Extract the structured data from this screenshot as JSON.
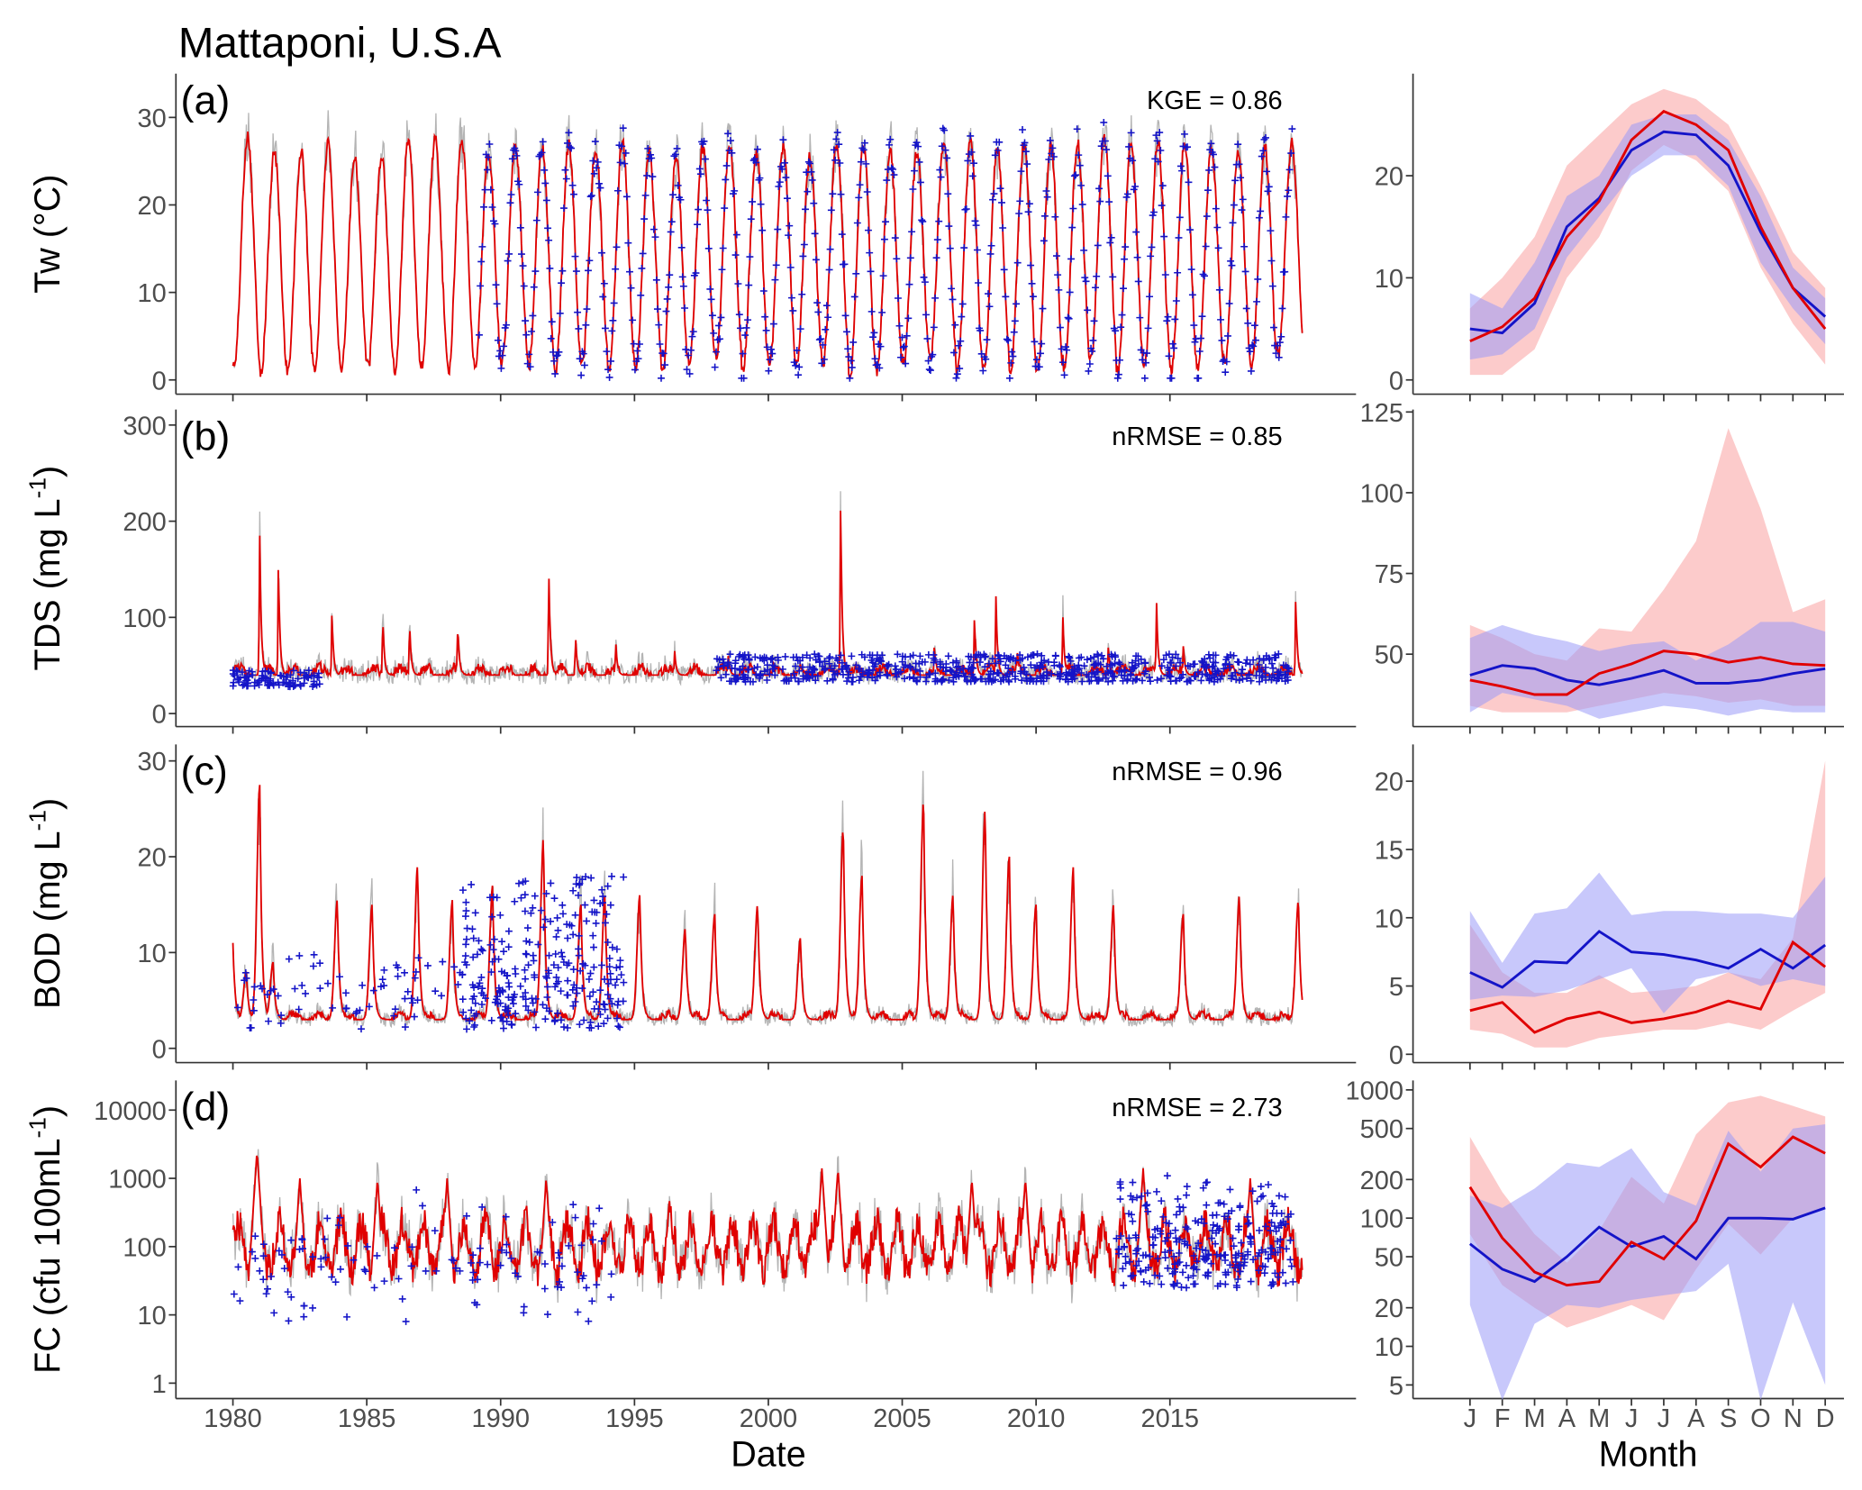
{
  "title": "Mattaponi, U.S.A",
  "colors": {
    "modeled": "#e00000",
    "observed": "#1414c8",
    "ensemble": "#b4b4b4",
    "modeled_band": "#f9a0a0",
    "observed_band": "#9a9af8"
  },
  "chart_data": [
    {
      "type": "line",
      "panel": "(a)",
      "metric": "KGE = 0.86",
      "ylabel": "Tw (°C)",
      "ylabel_unit_sup": "",
      "xlabel": "Date",
      "xlim": [
        1978,
        2021
      ],
      "ylim": [
        0,
        33
      ],
      "yticks": [
        "0",
        "10",
        "20",
        "30"
      ],
      "ytick_values": [
        0,
        10,
        20,
        30
      ],
      "xticks": [
        "1980",
        "1985",
        "1990",
        "1995",
        "2000",
        "2005",
        "2010",
        "2015"
      ],
      "series": {
        "modeled_annual_max": [
          28,
          26,
          26,
          27,
          25.5,
          25.5,
          27.5,
          27.5,
          27.5,
          26,
          27,
          26.5,
          27,
          26.5,
          27.5,
          26,
          25.5,
          26.5,
          27,
          26,
          26.5,
          25.5,
          27,
          27,
          26,
          26,
          27,
          27,
          26.5,
          27,
          27,
          27,
          27.5,
          27,
          27,
          27,
          26.5,
          26,
          26.5,
          27
        ],
        "modeled_annual_min": [
          1.5,
          1,
          1,
          1,
          1,
          1.5,
          1,
          1.5,
          1,
          2,
          2,
          1.5,
          1,
          2,
          1,
          1.5,
          0.8,
          2,
          2.5,
          1,
          2,
          1.5,
          2,
          0.5,
          1,
          2,
          2.5,
          0.8,
          1.5,
          1,
          0.8,
          1.5,
          2.5,
          0.8,
          1.5,
          1,
          1.5,
          2,
          1.5,
          3
        ],
        "observed_period": [
          1989.2,
          2019.6
        ]
      }
    },
    {
      "type": "line",
      "panel": "(b)",
      "metric": "nRMSE = 0.85",
      "ylabel": "TDS (mg L",
      "ylabel_unit_sup": "-1",
      "ylim": [
        0,
        310
      ],
      "yticks": [
        "0",
        "100",
        "200",
        "300"
      ],
      "ytick_values": [
        0,
        100,
        200,
        300
      ],
      "series": {
        "modeled_baseline": 40,
        "modeled_peaks": [
          [
            1981.0,
            185
          ],
          [
            1981.7,
            155
          ],
          [
            1983.7,
            105
          ],
          [
            1985.6,
            100
          ],
          [
            1986.6,
            95
          ],
          [
            1988.4,
            92
          ],
          [
            1991.8,
            150
          ],
          [
            1992.8,
            80
          ],
          [
            1994.3,
            75
          ],
          [
            1996.5,
            65
          ],
          [
            1998.5,
            60
          ],
          [
            2002.7,
            220
          ],
          [
            2006.2,
            70
          ],
          [
            2007.7,
            100
          ],
          [
            2008.5,
            122
          ],
          [
            2009.3,
            65
          ],
          [
            2011.0,
            100
          ],
          [
            2012.7,
            70
          ],
          [
            2014.5,
            115
          ],
          [
            2015.5,
            70
          ],
          [
            2019.7,
            120
          ]
        ],
        "observed_periods": [
          [
            1980.0,
            1983.3,
            28,
            45
          ],
          [
            1998.0,
            2019.5,
            33,
            62
          ]
        ]
      }
    },
    {
      "type": "line",
      "panel": "(c)",
      "metric": "nRMSE = 0.96",
      "ylabel": "BOD (mg L",
      "ylabel_unit_sup": "-1",
      "ylim": [
        0,
        31
      ],
      "yticks": [
        "0",
        "10",
        "20",
        "30"
      ],
      "ytick_values": [
        0,
        10,
        20,
        30
      ],
      "series": {
        "modeled_baseline": 3,
        "modeled_peaks": [
          [
            1980.0,
            11
          ],
          [
            1980.5,
            8
          ],
          [
            1981.0,
            27.5
          ],
          [
            1981.5,
            9
          ],
          [
            1983.9,
            15.5
          ],
          [
            1985.2,
            15
          ],
          [
            1986.9,
            19
          ],
          [
            1988.2,
            15.5
          ],
          [
            1989.7,
            17
          ],
          [
            1991.6,
            22
          ],
          [
            1993.0,
            15
          ],
          [
            1993.9,
            16
          ],
          [
            1995.2,
            16
          ],
          [
            1996.9,
            12.5
          ],
          [
            1998.0,
            14
          ],
          [
            1999.6,
            15
          ],
          [
            2001.2,
            11.5
          ],
          [
            2002.8,
            23
          ],
          [
            2003.5,
            18
          ],
          [
            2005.8,
            26
          ],
          [
            2006.9,
            16
          ],
          [
            2008.1,
            25
          ],
          [
            2009.0,
            20
          ],
          [
            2010.0,
            15
          ],
          [
            2011.4,
            19
          ],
          [
            2012.9,
            15
          ],
          [
            2015.5,
            14
          ],
          [
            2017.6,
            16
          ],
          [
            2019.8,
            15.5
          ]
        ],
        "observed_periods": [
          [
            1980.0,
            1988.5,
            2,
            10
          ],
          [
            1988.5,
            1994.6,
            2,
            18
          ]
        ]
      }
    },
    {
      "type": "line",
      "panel": "(d)",
      "metric": "nRMSE = 2.73",
      "yscale": "log",
      "ylabel": "FC (cfu 100mL",
      "ylabel_unit_sup": "-1",
      "ylim": [
        0.8,
        30000
      ],
      "yticks": [
        "1",
        "10",
        "100",
        "1000",
        "10000"
      ],
      "ytick_values": [
        1,
        10,
        100,
        1000,
        10000
      ],
      "series": {
        "modeled_median": 100,
        "modeled_peaks": [
          [
            1980.9,
            2500
          ],
          [
            1982.5,
            1000
          ],
          [
            1985.4,
            1000
          ],
          [
            1988.0,
            1000
          ],
          [
            1991.7,
            1000
          ],
          [
            1996.3,
            500
          ],
          [
            2002.0,
            1400
          ],
          [
            2002.6,
            1400
          ],
          [
            2007.6,
            1000
          ],
          [
            2009.6,
            1000
          ],
          [
            2014.0,
            1400
          ],
          [
            2018.0,
            1000
          ]
        ],
        "observed_periods": [
          [
            1980.0,
            1994.5,
            8,
            1200
          ],
          [
            2013.0,
            2019.6,
            25,
            1500
          ]
        ]
      }
    }
  ],
  "monthly": {
    "xlabel": "Month",
    "months": [
      "J",
      "F",
      "M",
      "A",
      "M",
      "J",
      "J",
      "A",
      "S",
      "O",
      "N",
      "D"
    ],
    "panels": [
      {
        "yticks": [
          "0",
          "10",
          "20"
        ],
        "ytick_values": [
          0,
          10,
          20
        ],
        "modeled": [
          3.8,
          5.2,
          8,
          14,
          17.5,
          23.5,
          26.3,
          25,
          22.5,
          15,
          9,
          5
        ],
        "observed": [
          5,
          4.6,
          7.5,
          15,
          17.8,
          22.5,
          24.3,
          24,
          21,
          14.5,
          9,
          6.2
        ],
        "modeled_upper": [
          7,
          10,
          14,
          21,
          24,
          27,
          28.5,
          27.5,
          25,
          19,
          12.5,
          9
        ],
        "modeled_lower": [
          0.5,
          0.5,
          3,
          10,
          14,
          20.5,
          23,
          21.5,
          18.5,
          11,
          5.5,
          1.5
        ],
        "observed_upper": [
          8.5,
          7,
          11.5,
          18,
          20,
          25,
          26,
          26,
          23.5,
          18,
          11,
          8
        ],
        "observed_lower": [
          2,
          2.5,
          5,
          12,
          16,
          20,
          22,
          22,
          19,
          11.5,
          7,
          3.5
        ]
      },
      {
        "yticks": [
          "50",
          "75",
          "100",
          "125"
        ],
        "ytick_values": [
          50,
          75,
          100,
          125
        ],
        "modeled": [
          42,
          40,
          37.5,
          37.5,
          44,
          47,
          51,
          50,
          47.5,
          49,
          47,
          46.5
        ],
        "observed": [
          43.5,
          46.5,
          45.5,
          42,
          40.5,
          42.5,
          45,
          41,
          41,
          42,
          44,
          45.5
        ],
        "modeled_upper": [
          59,
          55,
          50,
          48,
          58,
          57,
          70,
          85,
          120,
          95,
          63,
          67
        ],
        "modeled_lower": [
          34,
          32,
          32,
          32,
          34,
          36,
          38,
          37,
          35,
          36,
          34,
          34
        ],
        "observed_upper": [
          55,
          59,
          56,
          54,
          51,
          53,
          54,
          48,
          53,
          60,
          60,
          57
        ],
        "observed_lower": [
          32,
          38,
          36,
          34,
          30,
          32,
          34,
          33,
          31,
          33,
          32,
          32
        ]
      },
      {
        "yticks": [
          "0",
          "5",
          "10",
          "15",
          "20"
        ],
        "ytick_values": [
          0,
          5,
          10,
          15,
          20
        ],
        "modeled": [
          3.2,
          3.8,
          1.6,
          2.6,
          3.1,
          2.3,
          2.6,
          3.1,
          3.9,
          3.3,
          8.2,
          6.4
        ],
        "observed": [
          6,
          4.9,
          6.8,
          6.7,
          9,
          7.5,
          7.3,
          6.9,
          6.3,
          7.7,
          6.3,
          8
        ],
        "modeled_upper": [
          9.5,
          6,
          4.5,
          4.5,
          5.8,
          4.5,
          4.7,
          5,
          6,
          5.5,
          8.5,
          21.5
        ],
        "modeled_lower": [
          1.8,
          1.5,
          0.5,
          0.5,
          1.2,
          1.5,
          1.8,
          1.8,
          2.3,
          1.8,
          3.2,
          4.5
        ],
        "observed_upper": [
          10.5,
          6.7,
          10.3,
          10.7,
          13.3,
          10.2,
          10.5,
          10.5,
          10.3,
          10.3,
          10,
          13
        ],
        "observed_lower": [
          4,
          4.3,
          4.2,
          4.7,
          5.5,
          6.3,
          3,
          5.5,
          6,
          5,
          5.5,
          5
        ]
      },
      {
        "yscale": "log",
        "yticks": [
          "5",
          "10",
          "20",
          "50",
          "100",
          "200",
          "500",
          "1000"
        ],
        "ytick_values": [
          5,
          10,
          20,
          50,
          100,
          200,
          500,
          1000
        ],
        "modeled": [
          175,
          70,
          38,
          30,
          32,
          65,
          48,
          95,
          380,
          250,
          430,
          320
        ],
        "observed": [
          63,
          40,
          32,
          50,
          85,
          60,
          72,
          48,
          100,
          100,
          98,
          120
        ],
        "modeled_upper": [
          430,
          160,
          75,
          45,
          80,
          210,
          130,
          450,
          800,
          900,
          750,
          620
        ],
        "modeled_lower": [
          75,
          30,
          20,
          14,
          17,
          21,
          16,
          40,
          90,
          52,
          100,
          120
        ],
        "observed_upper": [
          150,
          120,
          170,
          270,
          250,
          350,
          160,
          125,
          480,
          230,
          500,
          540
        ],
        "observed_lower": [
          21,
          3.8,
          15,
          21,
          20,
          23,
          25,
          27,
          44,
          3.8,
          22,
          5
        ]
      }
    ]
  }
}
